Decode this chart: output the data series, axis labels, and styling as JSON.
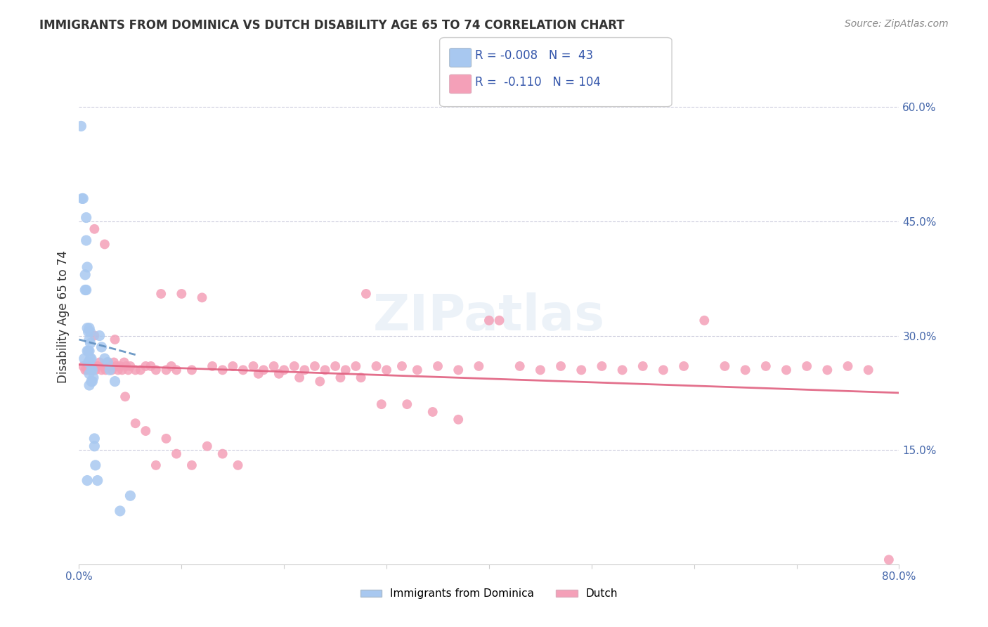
{
  "title": "IMMIGRANTS FROM DOMINICA VS DUTCH DISABILITY AGE 65 TO 74 CORRELATION CHART",
  "source": "Source: ZipAtlas.com",
  "ylabel": "Disability Age 65 to 74",
  "xlim": [
    0.0,
    0.8
  ],
  "ylim": [
    0.0,
    0.65
  ],
  "xticklabels": [
    "0.0%",
    "",
    "",
    "",
    "",
    "",
    "",
    "",
    "80.0%"
  ],
  "ytick_labels_right": [
    "15.0%",
    "30.0%",
    "45.0%",
    "60.0%"
  ],
  "yticks_right": [
    0.15,
    0.3,
    0.45,
    0.6
  ],
  "color_dominica": "#a8c8f0",
  "color_dutch": "#f4a0b8",
  "color_line_dominica": "#6090c0",
  "color_line_dutch": "#e06080",
  "watermark": "ZIPatlas",
  "dom_x": [
    0.002,
    0.004,
    0.006,
    0.006,
    0.007,
    0.007,
    0.007,
    0.008,
    0.008,
    0.008,
    0.009,
    0.009,
    0.009,
    0.01,
    0.01,
    0.01,
    0.01,
    0.01,
    0.01,
    0.011,
    0.011,
    0.011,
    0.012,
    0.012,
    0.012,
    0.013,
    0.013,
    0.014,
    0.015,
    0.015,
    0.016,
    0.018,
    0.02,
    0.022,
    0.025,
    0.028,
    0.03,
    0.035,
    0.04,
    0.05,
    0.003,
    0.005,
    0.008
  ],
  "dom_y": [
    0.575,
    0.48,
    0.38,
    0.36,
    0.455,
    0.425,
    0.36,
    0.39,
    0.31,
    0.28,
    0.305,
    0.28,
    0.265,
    0.31,
    0.295,
    0.28,
    0.265,
    0.25,
    0.235,
    0.305,
    0.29,
    0.27,
    0.27,
    0.255,
    0.24,
    0.255,
    0.24,
    0.245,
    0.165,
    0.155,
    0.13,
    0.11,
    0.3,
    0.285,
    0.27,
    0.265,
    0.255,
    0.24,
    0.07,
    0.09,
    0.48,
    0.27,
    0.11
  ],
  "dutch_x": [
    0.004,
    0.006,
    0.008,
    0.01,
    0.012,
    0.014,
    0.015,
    0.016,
    0.018,
    0.02,
    0.022,
    0.024,
    0.026,
    0.028,
    0.03,
    0.032,
    0.034,
    0.036,
    0.038,
    0.04,
    0.042,
    0.044,
    0.046,
    0.048,
    0.05,
    0.055,
    0.06,
    0.065,
    0.07,
    0.075,
    0.08,
    0.085,
    0.09,
    0.095,
    0.1,
    0.11,
    0.12,
    0.13,
    0.14,
    0.15,
    0.16,
    0.17,
    0.18,
    0.19,
    0.2,
    0.21,
    0.22,
    0.23,
    0.24,
    0.25,
    0.26,
    0.27,
    0.28,
    0.29,
    0.3,
    0.315,
    0.33,
    0.35,
    0.37,
    0.39,
    0.41,
    0.43,
    0.45,
    0.47,
    0.49,
    0.51,
    0.53,
    0.55,
    0.57,
    0.59,
    0.61,
    0.63,
    0.65,
    0.67,
    0.69,
    0.71,
    0.73,
    0.75,
    0.77,
    0.79,
    0.015,
    0.025,
    0.035,
    0.045,
    0.055,
    0.065,
    0.075,
    0.085,
    0.095,
    0.11,
    0.125,
    0.14,
    0.155,
    0.175,
    0.195,
    0.215,
    0.235,
    0.255,
    0.275,
    0.295,
    0.32,
    0.345,
    0.37,
    0.4
  ],
  "dutch_y": [
    0.26,
    0.255,
    0.255,
    0.26,
    0.255,
    0.26,
    0.3,
    0.255,
    0.26,
    0.265,
    0.255,
    0.26,
    0.255,
    0.265,
    0.26,
    0.255,
    0.265,
    0.26,
    0.255,
    0.26,
    0.255,
    0.265,
    0.26,
    0.255,
    0.26,
    0.255,
    0.255,
    0.26,
    0.26,
    0.255,
    0.355,
    0.255,
    0.26,
    0.255,
    0.355,
    0.255,
    0.35,
    0.26,
    0.255,
    0.26,
    0.255,
    0.26,
    0.255,
    0.26,
    0.255,
    0.26,
    0.255,
    0.26,
    0.255,
    0.26,
    0.255,
    0.26,
    0.355,
    0.26,
    0.255,
    0.26,
    0.255,
    0.26,
    0.255,
    0.26,
    0.32,
    0.26,
    0.255,
    0.26,
    0.255,
    0.26,
    0.255,
    0.26,
    0.255,
    0.26,
    0.32,
    0.26,
    0.255,
    0.26,
    0.255,
    0.26,
    0.255,
    0.26,
    0.255,
    0.006,
    0.44,
    0.42,
    0.295,
    0.22,
    0.185,
    0.175,
    0.13,
    0.165,
    0.145,
    0.13,
    0.155,
    0.145,
    0.13,
    0.25,
    0.25,
    0.245,
    0.24,
    0.245,
    0.245,
    0.21,
    0.21,
    0.2,
    0.19,
    0.32
  ],
  "dom_line_x": [
    0.0,
    0.055
  ],
  "dom_line_y": [
    0.295,
    0.275
  ],
  "dutch_line_x": [
    0.0,
    0.8
  ],
  "dutch_line_y": [
    0.262,
    0.225
  ],
  "legend_row1": "R = -0.008   N =  43",
  "legend_row2": "R =  -0.110   N = 104",
  "bottom_legend": [
    "Immigrants from Dominica",
    "Dutch"
  ]
}
